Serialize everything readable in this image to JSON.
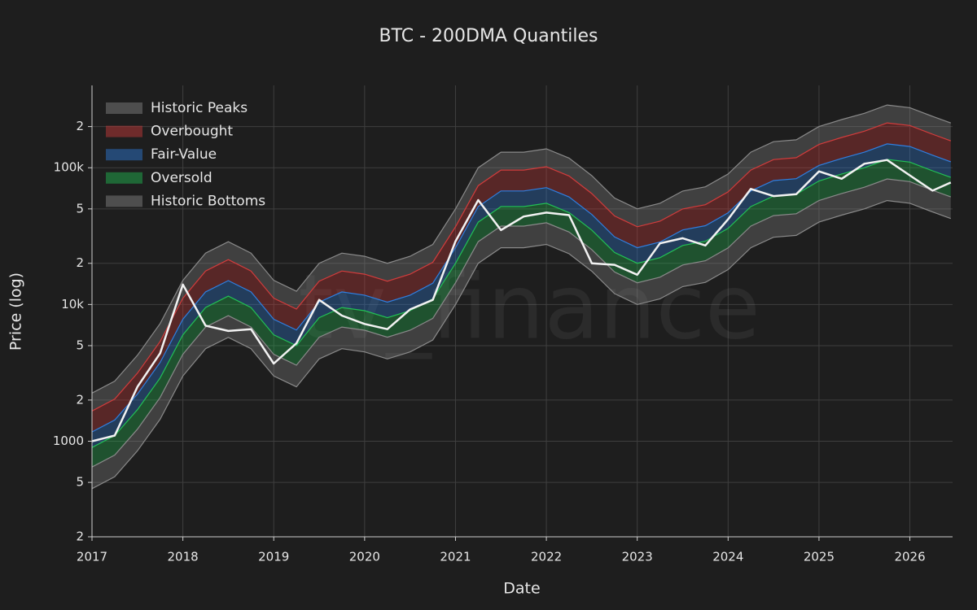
{
  "chart_data": {
    "type": "line",
    "title": "BTC - 200DMA Quantiles",
    "xlabel": "Date",
    "ylabel": "Price (log)",
    "watermark": "tv_finance",
    "log_y": true,
    "grid": true,
    "legend": "top-left",
    "xlim": [
      2017,
      2026.47
    ],
    "xticks": [
      2017,
      2018,
      2019,
      2020,
      2021,
      2022,
      2023,
      2024,
      2025,
      2026
    ],
    "ylim": [
      200,
      400000
    ],
    "yticks": [
      {
        "value": 200,
        "label": "2"
      },
      {
        "value": 500,
        "label": "5"
      },
      1000,
      {
        "value": 2000,
        "label": "2"
      },
      {
        "value": 5000,
        "label": "5"
      },
      {
        "value": 10000,
        "label": "10k"
      },
      {
        "value": 20000,
        "label": "2"
      },
      {
        "value": 50000,
        "label": "5"
      },
      {
        "value": 100000,
        "label": "100k"
      },
      {
        "value": 200000,
        "label": "2"
      }
    ],
    "x": [
      2017,
      2017.25,
      2017.5,
      2017.75,
      2018,
      2018.25,
      2018.5,
      2018.75,
      2019,
      2019.25,
      2019.5,
      2019.75,
      2020,
      2020.25,
      2020.5,
      2020.75,
      2021,
      2021.25,
      2021.5,
      2021.75,
      2022,
      2022.25,
      2022.5,
      2022.75,
      2023,
      2023.25,
      2023.5,
      2023.75,
      2024,
      2024.25,
      2024.5,
      2024.75,
      2025,
      2025.25,
      2025.5,
      2025.75,
      2026,
      2026.25,
      2026.45
    ],
    "series": [
      {
        "name": "Historic Peaks",
        "color": "#8a8a8a",
        "values": [
          2250,
          2750,
          4250,
          7250,
          15000,
          23750,
          28750,
          23750,
          15000,
          12500,
          20000,
          23750,
          22500,
          20000,
          22500,
          27500,
          50000,
          100000,
          130000,
          130000,
          137500,
          117500,
          87500,
          60000,
          50000,
          55000,
          67500,
          72500,
          90000,
          130000,
          155000,
          160000,
          200000,
          225000,
          250000,
          287500,
          275000,
          237500,
          212500
        ]
      },
      {
        "name": "Overbought",
        "color": "#d23c3c",
        "values": [
          1665,
          2035,
          3145,
          5365,
          11100,
          17575,
          21275,
          17575,
          11100,
          9250,
          14800,
          17575,
          16650,
          14800,
          16650,
          20350,
          37000,
          74000,
          96200,
          96200,
          101750,
          86950,
          64750,
          44400,
          37000,
          40700,
          49950,
          53650,
          66600,
          96200,
          114700,
          118400,
          148000,
          166500,
          185000,
          212750,
          203500,
          175750,
          157250
        ]
      },
      {
        "name": "Fair-Value",
        "color": "#2f7fe0",
        "values": [
          1170,
          1430,
          2210,
          3770,
          7800,
          12350,
          14950,
          12350,
          7800,
          6500,
          10400,
          12350,
          11700,
          10400,
          11700,
          14300,
          26000,
          52000,
          67600,
          67600,
          71500,
          61100,
          45500,
          31200,
          26000,
          28600,
          35100,
          37700,
          46800,
          67600,
          80600,
          83200,
          104000,
          117000,
          130000,
          149500,
          143000,
          123500,
          110500
        ]
      },
      {
        "name": "Oversold",
        "color": "#22c055",
        "values": [
          900,
          1100,
          1700,
          2900,
          6000,
          9500,
          11500,
          9500,
          6000,
          5000,
          8000,
          9500,
          9000,
          8000,
          9000,
          11000,
          20000,
          40000,
          52000,
          52000,
          55000,
          47000,
          35000,
          24000,
          20000,
          22000,
          27000,
          29000,
          36000,
          52000,
          62000,
          64000,
          80000,
          90000,
          100000,
          115000,
          110000,
          95000,
          85000
        ]
      },
      {
        "name": "Historic Bottoms",
        "color": "#8a8a8a",
        "values": [
          648,
          792,
          1224,
          2088,
          4320,
          6840,
          8280,
          6840,
          4320,
          3600,
          5760,
          6840,
          6480,
          5760,
          6480,
          7920,
          14400,
          28800,
          37440,
          37440,
          39600,
          33840,
          25200,
          17280,
          14400,
          15840,
          19440,
          20880,
          25920,
          37440,
          44640,
          46080,
          57600,
          64800,
          72000,
          82800,
          79200,
          68400,
          61200
        ],
        "lower": [
          450,
          550,
          850,
          1450,
          3000,
          4750,
          5750,
          4750,
          3000,
          2500,
          4000,
          4750,
          4500,
          4000,
          4500,
          5500,
          10000,
          20000,
          26000,
          26000,
          27500,
          23500,
          17500,
          12000,
          10000,
          11000,
          13500,
          14500,
          18000,
          26000,
          31000,
          32000,
          40000,
          45000,
          50000,
          57500,
          55000,
          47500,
          42500
        ]
      }
    ],
    "price": {
      "color": "#f2f2f2",
      "values": [
        1000,
        1100,
        2500,
        4400,
        14000,
        7000,
        6400,
        6600,
        3700,
        5200,
        10800,
        8300,
        7200,
        6600,
        9200,
        10800,
        29000,
        58000,
        35000,
        44000,
        47000,
        45000,
        20000,
        19500,
        16500,
        28000,
        30500,
        27000,
        42000,
        70000,
        62000,
        64000,
        94000,
        83000,
        107000,
        114000,
        88000,
        68000,
        78000
      ]
    }
  }
}
